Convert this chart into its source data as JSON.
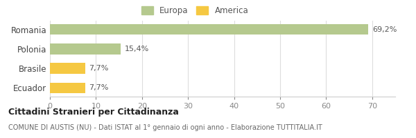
{
  "categories": [
    "Romania",
    "Polonia",
    "Brasile",
    "Ecuador"
  ],
  "values": [
    69.2,
    15.4,
    7.7,
    7.7
  ],
  "labels": [
    "69,2%",
    "15,4%",
    "7,7%",
    "7,7%"
  ],
  "bar_colors": [
    "#b5c98e",
    "#b5c98e",
    "#f5c842",
    "#f5c842"
  ],
  "legend_items": [
    {
      "label": "Europa",
      "color": "#b5c98e"
    },
    {
      "label": "America",
      "color": "#f5c842"
    }
  ],
  "xlim": [
    0,
    75
  ],
  "xticks": [
    0,
    10,
    20,
    30,
    40,
    50,
    60,
    70
  ],
  "title_bold": "Cittadini Stranieri per Cittadinanza",
  "subtitle": "COMUNE DI AUSTIS (NU) - Dati ISTAT al 1° gennaio di ogni anno - Elaborazione TUTTITALIA.IT",
  "background_color": "#ffffff",
  "grid_color": "#dddddd"
}
